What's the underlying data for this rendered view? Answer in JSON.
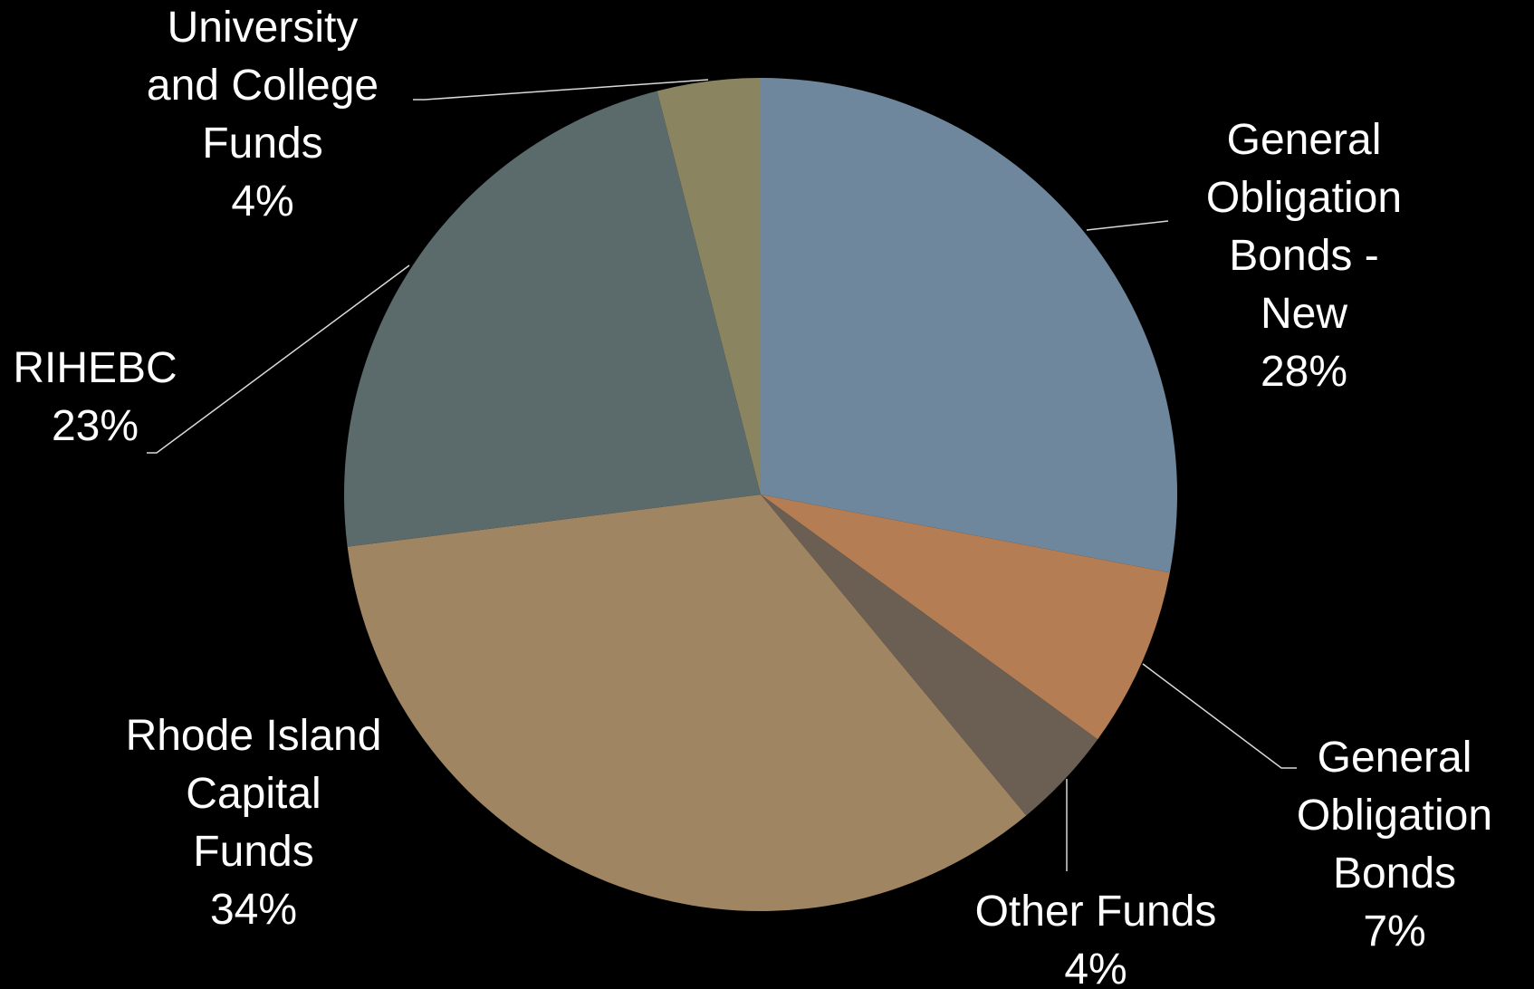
{
  "chart_data": {
    "type": "pie",
    "slices": [
      {
        "label": "General Obligation Bonds - New",
        "value": 28,
        "percent_label": "28%",
        "color": "#6f879c"
      },
      {
        "label": "General Obligation Bonds",
        "value": 7,
        "percent_label": "7%",
        "color": "#b57d54"
      },
      {
        "label": "Other Funds",
        "value": 4,
        "percent_label": "4%",
        "color": "#6b5e53"
      },
      {
        "label": "Rhode Island Capital Funds",
        "value": 34,
        "percent_label": "34%",
        "color": "#a08563"
      },
      {
        "label": "RIHEBC",
        "value": 23,
        "percent_label": "23%",
        "color": "#5b6b6c"
      },
      {
        "label": "University and College Funds",
        "value": 4,
        "percent_label": "4%",
        "color": "#8a8461"
      }
    ],
    "start_angle": "12 o'clock",
    "direction": "clockwise",
    "legend": "none",
    "background": "#000000"
  }
}
